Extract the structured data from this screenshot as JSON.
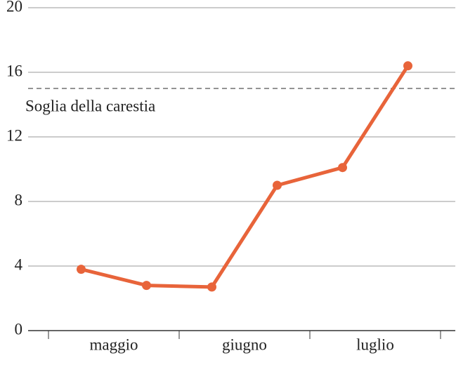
{
  "chart_data": {
    "type": "line",
    "categories": [
      "maggio",
      "giugno",
      "luglio"
    ],
    "series": [
      {
        "color": "#e8643a",
        "values": [
          [
            3.8,
            2.8
          ],
          [
            2.7,
            9.0
          ],
          [
            10.1,
            16.4
          ]
        ]
      }
    ],
    "ylim": [
      0,
      20
    ],
    "yticks": [
      0,
      4,
      8,
      12,
      16,
      20
    ],
    "grid": true,
    "reference_line": {
      "value": 15,
      "label": "Soglia della carestia"
    }
  }
}
